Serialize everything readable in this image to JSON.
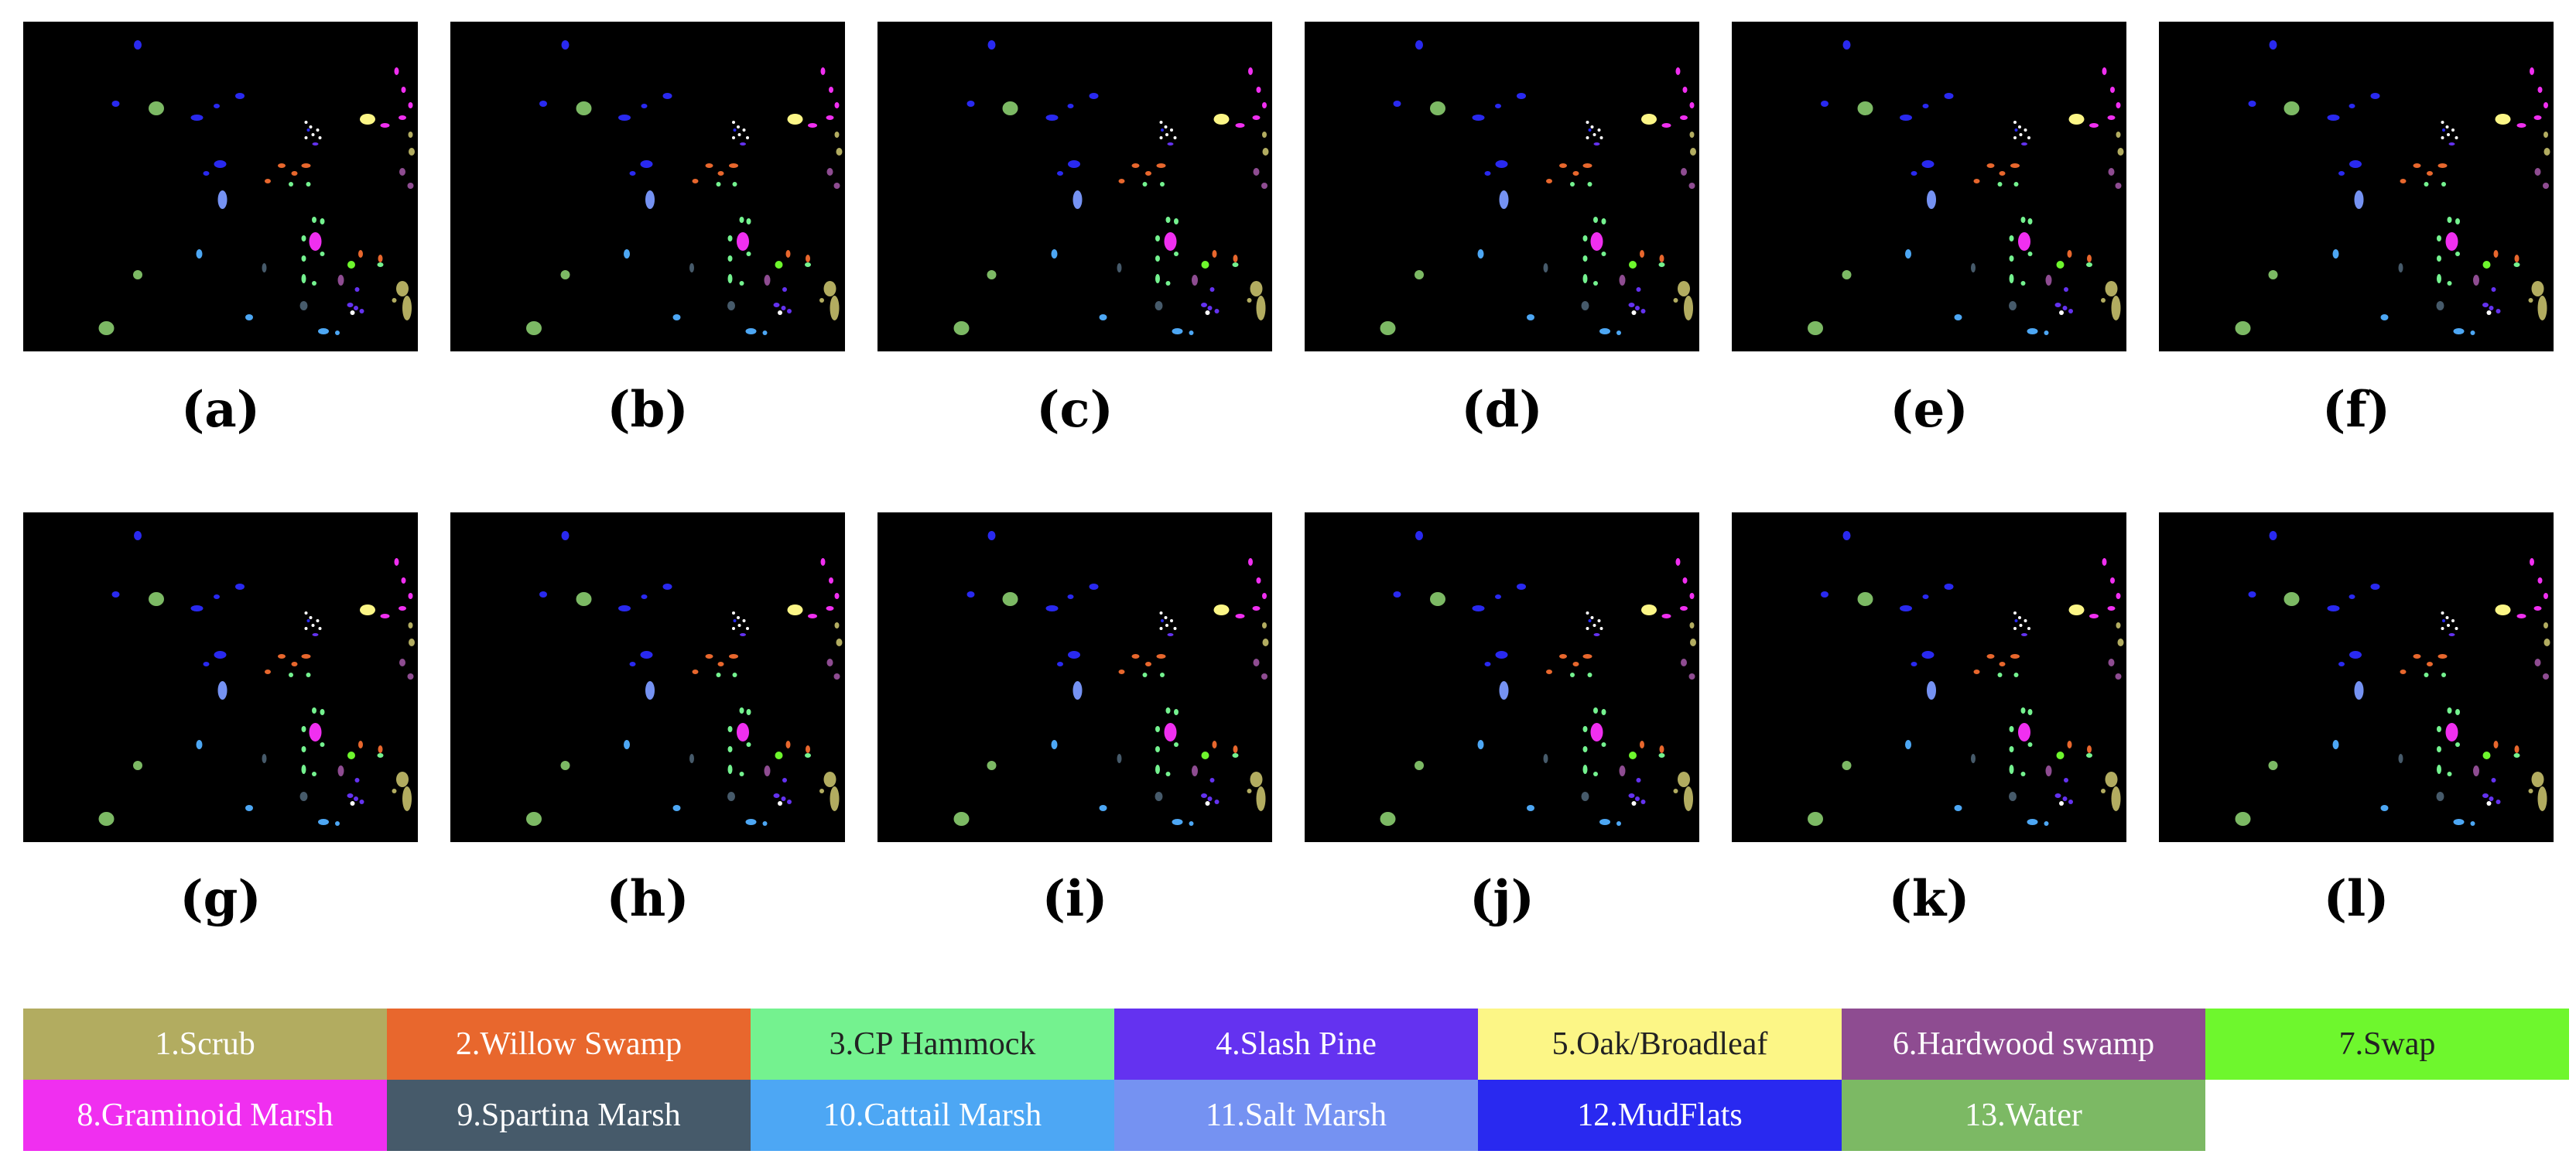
{
  "panels": [
    {
      "label": "(a)"
    },
    {
      "label": "(b)"
    },
    {
      "label": "(c)"
    },
    {
      "label": "(d)"
    },
    {
      "label": "(e)"
    },
    {
      "label": "(f)"
    },
    {
      "label": "(g)"
    },
    {
      "label": "(h)"
    },
    {
      "label": "(i)"
    },
    {
      "label": "(j)"
    },
    {
      "label": "(k)"
    },
    {
      "label": "(l)"
    }
  ],
  "legend": [
    {
      "label": "1.Scrub",
      "color": "#B2AC60"
    },
    {
      "label": "2.Willow Swamp",
      "color": "#E8672D"
    },
    {
      "label": "3.CP Hammock",
      "color": "#74F28F"
    },
    {
      "label": "4.Slash Pine",
      "color": "#6432F0"
    },
    {
      "label": "5.Oak/Broadleaf",
      "color": "#FCF686"
    },
    {
      "label": "6.Hardwood swamp",
      "color": "#8E4C91"
    },
    {
      "label": "7.Swap",
      "color": "#6EF72D"
    },
    {
      "label": "8.Graminoid Marsh",
      "color": "#F02FF0"
    },
    {
      "label": "9.Spartina Marsh",
      "color": "#465A6A"
    },
    {
      "label": "10.Cattail Marsh",
      "color": "#4DA7F4"
    },
    {
      "label": "11.Salt Marsh",
      "color": "#7592F2"
    },
    {
      "label": "12.MudFlats",
      "color": "#2929F0"
    },
    {
      "label": "13.Water",
      "color": "#7CB964"
    }
  ]
}
